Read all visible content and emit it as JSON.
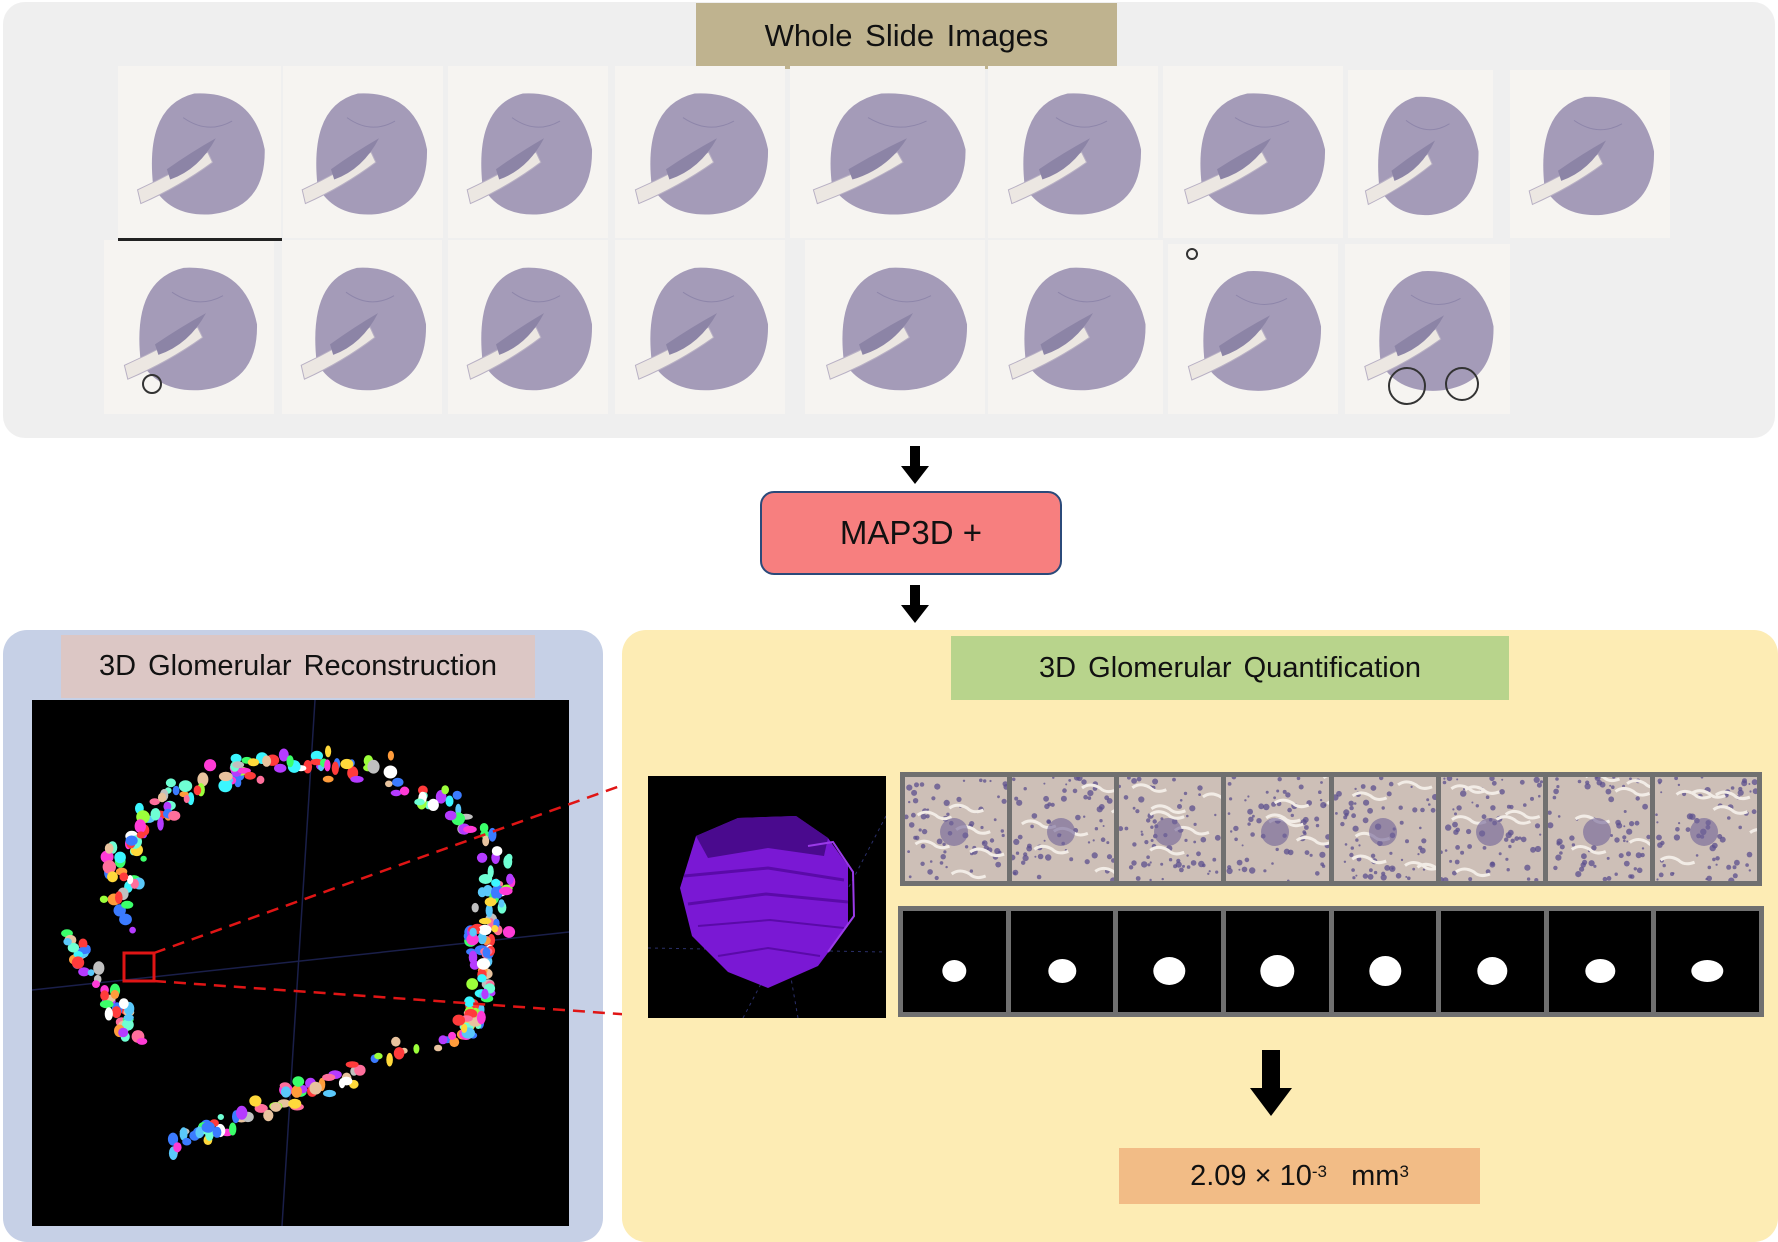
{
  "wsi": {
    "title": "Whole Slide Images",
    "row1_count": 9,
    "row2_count": 8
  },
  "pipeline": {
    "method_label": "MAP3D +"
  },
  "reconstruction": {
    "title": "3D Glomerular Reconstruction"
  },
  "quantification": {
    "title": "3D Glomerular Quantification",
    "patch_count": 8,
    "mask_count": 8,
    "result": {
      "value": "2.09 × 10",
      "exponent": "-3",
      "unit": "mm",
      "unit_exponent": "3"
    }
  },
  "colors": {
    "wsi_label_bg": "#bfb38f",
    "map3d_bg": "#f77f7f",
    "recon_panel_bg": "#c6d0e6",
    "recon_label_bg": "#dcc7c5",
    "quant_panel_bg": "#fdecb4",
    "quant_label_bg": "#b8d48c",
    "result_bg": "#f2bc86",
    "tissue": "#a49bb8",
    "glomerulus_3d": "#8a1ee6",
    "highlight": "#e01515"
  }
}
